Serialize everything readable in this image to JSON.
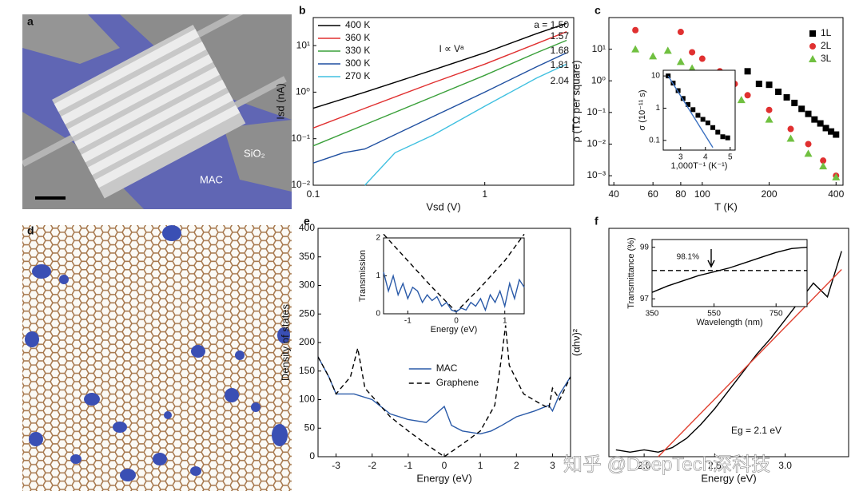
{
  "images": [
    {
      "label": "a",
      "annotations": [
        "SiO₂",
        "MAC"
      ]
    },
    {
      "label": "d"
    }
  ],
  "watermark": "知乎 @DeepTech深科技",
  "chart_data": [
    {
      "type": "line",
      "panel": "b",
      "xlabel": "Vsd (V)",
      "ylabel": "Isd (nA)",
      "xlog": true,
      "ylog": true,
      "xlim": [
        0.1,
        3.3
      ],
      "ylim": [
        0.01,
        40
      ],
      "xticks": [
        0.1,
        1
      ],
      "yticks": [
        {
          "value": 0.01,
          "label": "10⁻²"
        },
        {
          "value": 0.1,
          "label": "10⁻¹"
        },
        {
          "value": 1,
          "label": "10⁰"
        },
        {
          "value": 10,
          "label": "10¹"
        }
      ],
      "legend": "upper left",
      "annotations": [
        "I ∝ Vᵃ",
        "a = 1.50",
        "1.57",
        "1.68",
        "1.81",
        "2.04"
      ],
      "series": [
        {
          "name": "400 K",
          "color": "#000000",
          "x": [
            0.1,
            0.2,
            0.5,
            1,
            2,
            3
          ],
          "values": [
            0.45,
            1.0,
            3.0,
            7,
            18,
            30
          ]
        },
        {
          "name": "360 K",
          "color": "#e03030",
          "x": [
            0.1,
            0.2,
            0.5,
            1,
            2,
            3
          ],
          "values": [
            0.17,
            0.45,
            1.6,
            4,
            11,
            20
          ]
        },
        {
          "name": "330 K",
          "color": "#3aa03a",
          "x": [
            0.1,
            0.2,
            0.5,
            1,
            2,
            3
          ],
          "values": [
            0.07,
            0.2,
            0.8,
            2.3,
            7,
            13
          ]
        },
        {
          "name": "300 K",
          "color": "#1f4fa0",
          "x": [
            0.1,
            0.15,
            0.2,
            0.5,
            1,
            2,
            3
          ],
          "values": [
            0.03,
            0.05,
            0.06,
            0.3,
            1.0,
            3.5,
            7
          ]
        },
        {
          "name": "270 K",
          "color": "#40c0e0",
          "x": [
            0.2,
            0.3,
            0.5,
            1,
            2,
            3
          ],
          "values": [
            0.01,
            0.05,
            0.12,
            0.5,
            2,
            4
          ]
        }
      ]
    },
    {
      "type": "scatter",
      "panel": "c",
      "xlabel": "T (K)",
      "ylabel": "ρ (TΩ per square)",
      "xlog": true,
      "ylog": true,
      "xlim": [
        38,
        430
      ],
      "ylim": [
        0.0005,
        100
      ],
      "xticks": [
        40,
        60,
        80,
        100,
        200,
        400
      ],
      "yticks": [
        {
          "value": 0.001,
          "label": "10⁻³"
        },
        {
          "value": 0.01,
          "label": "10⁻²"
        },
        {
          "value": 0.1,
          "label": "10⁻¹"
        },
        {
          "value": 1,
          "label": "10⁰"
        },
        {
          "value": 10,
          "label": "10¹"
        }
      ],
      "legend": "upper right",
      "series": [
        {
          "name": "1L",
          "color": "#000000",
          "marker": "square",
          "x": [
            160,
            180,
            200,
            220,
            240,
            260,
            280,
            300,
            320,
            340,
            360,
            380,
            400
          ],
          "values": [
            2,
            0.8,
            0.75,
            0.45,
            0.3,
            0.2,
            0.13,
            0.09,
            0.06,
            0.045,
            0.032,
            0.025,
            0.02
          ]
        },
        {
          "name": "2L",
          "color": "#e03030",
          "marker": "circle",
          "x": [
            50,
            80,
            90,
            100,
            120,
            140,
            160,
            200,
            250,
            300,
            350,
            400
          ],
          "values": [
            40,
            35,
            8,
            5,
            2,
            0.8,
            0.35,
            0.12,
            0.03,
            0.01,
            0.003,
            0.001
          ]
        },
        {
          "name": "3L",
          "color": "#70c040",
          "marker": "triangle",
          "x": [
            50,
            60,
            70,
            80,
            90,
            100,
            120,
            150,
            200,
            250,
            300,
            350,
            400
          ],
          "values": [
            10,
            6,
            9,
            4,
            2.5,
            1.5,
            0.7,
            0.25,
            0.06,
            0.015,
            0.005,
            0.002,
            0.0009
          ]
        }
      ],
      "inset": {
        "type": "scatter",
        "xlabel": "1,000T⁻¹ (K⁻¹)",
        "ylabel": "σ (10⁻¹¹ s)",
        "ylog": true,
        "xlim": [
          2.3,
          5.2
        ],
        "ylim": [
          0.05,
          15
        ],
        "xticks": [
          3,
          4,
          5
        ],
        "yticks": [
          0.1,
          1,
          10
        ],
        "series": [
          {
            "color": "#000000",
            "marker": "square",
            "x": [
              2.5,
              2.7,
              2.9,
              3.1,
              3.3,
              3.5,
              3.7,
              3.9,
              4.1,
              4.3,
              4.5,
              4.7,
              4.9
            ],
            "values": [
              10,
              6,
              3.5,
              2,
              1.3,
              0.9,
              0.6,
              0.45,
              0.35,
              0.25,
              0.18,
              0.13,
              0.12
            ]
          },
          {
            "color": "#3a70c0",
            "type": "line",
            "x": [
              2.5,
              4.3
            ],
            "values": [
              10,
              0.06
            ]
          }
        ]
      }
    },
    {
      "type": "line",
      "panel": "e",
      "xlabel": "Energy (eV)",
      "ylabel": "Density of states",
      "xlim": [
        -3.5,
        3.5
      ],
      "ylim": [
        0,
        400
      ],
      "xticks": [
        -3,
        -2,
        -1,
        0,
        1,
        2,
        3
      ],
      "yticks": [
        0,
        50,
        100,
        150,
        200,
        250,
        300,
        350,
        400
      ],
      "legend": "lower center",
      "series": [
        {
          "name": "MAC",
          "color": "#2a5aa8",
          "x": [
            -3.5,
            -3.2,
            -3,
            -2.5,
            -2,
            -1.5,
            -1,
            -0.5,
            0,
            0.2,
            0.5,
            1,
            1.3,
            1.6,
            2,
            2.5,
            2.9,
            3,
            3.2,
            3.5
          ],
          "values": [
            175,
            140,
            110,
            110,
            100,
            75,
            65,
            60,
            88,
            55,
            45,
            40,
            45,
            55,
            70,
            80,
            90,
            80,
            110,
            140
          ]
        },
        {
          "name": "Graphene",
          "color": "#000000",
          "style": "dashed",
          "x": [
            -3.5,
            -3.2,
            -3,
            -2.6,
            -2.4,
            -2.2,
            -1.5,
            -1,
            -0.5,
            0,
            0.5,
            1,
            1.4,
            1.6,
            1.7,
            1.8,
            2.2,
            2.6,
            2.9,
            3,
            3.2,
            3.5
          ],
          "values": [
            175,
            140,
            110,
            140,
            190,
            120,
            70,
            45,
            22,
            0,
            22,
            45,
            90,
            180,
            230,
            160,
            110,
            95,
            85,
            120,
            100,
            140
          ]
        }
      ],
      "inset": {
        "type": "line",
        "xlabel": "Energy (eV)",
        "ylabel": "Transmission",
        "xlim": [
          -1.5,
          1.4
        ],
        "ylim": [
          0,
          2
        ],
        "xticks": [
          -1,
          0,
          1
        ],
        "yticks": [
          0,
          1,
          2
        ],
        "series": [
          {
            "color": "#000000",
            "style": "dashed",
            "x": [
              -1.5,
              -1,
              -0.5,
              0,
              0.5,
              1,
              1.4
            ],
            "values": [
              2.1,
              1.4,
              0.7,
              0.05,
              0.7,
              1.4,
              2.1
            ]
          },
          {
            "color": "#2a5aa8",
            "x": [
              -1.5,
              -1.4,
              -1.3,
              -1.2,
              -1.1,
              -1,
              -0.9,
              -0.8,
              -0.7,
              -0.6,
              -0.5,
              -0.4,
              -0.3,
              -0.2,
              -0.1,
              0,
              0.1,
              0.2,
              0.3,
              0.4,
              0.5,
              0.6,
              0.7,
              0.8,
              0.9,
              1,
              1.1,
              1.2,
              1.3,
              1.4
            ],
            "values": [
              1.1,
              0.6,
              1.0,
              0.5,
              0.8,
              0.4,
              0.7,
              0.6,
              0.3,
              0.5,
              0.35,
              0.45,
              0.2,
              0.3,
              0.1,
              0.05,
              0.15,
              0.1,
              0.3,
              0.2,
              0.4,
              0.1,
              0.5,
              0.3,
              0.6,
              0.2,
              0.8,
              0.4,
              0.9,
              0.7
            ]
          }
        ]
      }
    },
    {
      "type": "line",
      "panel": "f",
      "xlabel": "Energy (eV)",
      "ylabel": "(αhν)²",
      "xlim": [
        1.75,
        3.45
      ],
      "ylim": [
        0,
        1
      ],
      "xticks": [
        {
          "value": 2,
          "label": "2.0"
        },
        {
          "value": 2.5,
          "label": "2.5"
        },
        {
          "value": 3,
          "label": "3.0"
        }
      ],
      "annotations": [
        "Eg = 2.1 eV"
      ],
      "series": [
        {
          "color": "#000000",
          "x": [
            1.8,
            1.9,
            2.0,
            2.1,
            2.2,
            2.3,
            2.4,
            2.5,
            2.6,
            2.7,
            2.8,
            2.9,
            3.0,
            3.1,
            3.2,
            3.3,
            3.4
          ],
          "values": [
            0.03,
            0.02,
            0.03,
            0.02,
            0.04,
            0.08,
            0.14,
            0.21,
            0.29,
            0.37,
            0.45,
            0.52,
            0.6,
            0.68,
            0.76,
            0.7,
            0.9
          ]
        },
        {
          "color": "#e04030",
          "x": [
            2.1,
            3.4
          ],
          "values": [
            0,
            0.82
          ]
        }
      ],
      "inset": {
        "type": "line",
        "xlabel": "Wavelength (nm)",
        "ylabel": "Transmittance (%)",
        "xlim": [
          350,
          850
        ],
        "ylim": [
          96.7,
          99.3
        ],
        "xticks": [
          350,
          550,
          750
        ],
        "yticks": [
          97,
          99
        ],
        "annotations": [
          "98.1%"
        ],
        "series": [
          {
            "color": "#000000",
            "x": [
              350,
              400,
              450,
              500,
              550,
              600,
              650,
              700,
              750,
              800,
              850
            ],
            "values": [
              97.25,
              97.5,
              97.7,
              97.9,
              98.05,
              98.2,
              98.4,
              98.6,
              98.8,
              98.95,
              99.0
            ]
          },
          {
            "color": "#000000",
            "style": "dashed",
            "x": [
              350,
              850
            ],
            "values": [
              98.1,
              98.1
            ]
          }
        ]
      }
    }
  ]
}
